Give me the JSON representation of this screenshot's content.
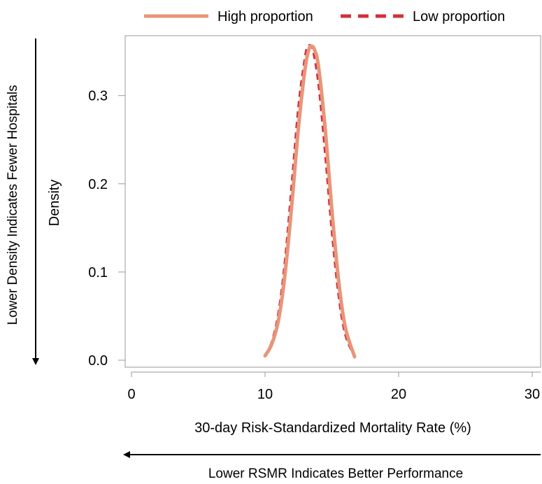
{
  "chart_data": {
    "type": "line",
    "title": "",
    "xlabel": "30-day Risk-Standardized Mortality Rate (%)",
    "ylabel": "Density",
    "xlim": [
      0,
      30
    ],
    "ylim": [
      0,
      0.36
    ],
    "x_ticks": [
      0,
      10,
      20,
      30
    ],
    "x_tick_labels": [
      "0",
      "10",
      "20",
      "30"
    ],
    "y_ticks": [
      0.0,
      0.1,
      0.2,
      0.3
    ],
    "y_tick_labels": [
      "0.0",
      "0.1",
      "0.2",
      "0.3"
    ],
    "grid": false,
    "legend_position": "top",
    "series": [
      {
        "name": "High proportion",
        "color": "#E8957A",
        "dash": "solid",
        "x": [
          10.0,
          10.5,
          11.0,
          11.5,
          12.0,
          12.5,
          13.0,
          13.3,
          13.5,
          13.7,
          14.0,
          14.5,
          15.0,
          15.5,
          16.0,
          16.7
        ],
        "y": [
          0.005,
          0.018,
          0.045,
          0.098,
          0.176,
          0.264,
          0.331,
          0.353,
          0.356,
          0.352,
          0.333,
          0.263,
          0.171,
          0.091,
          0.038,
          0.004
        ]
      },
      {
        "name": "Low proportion",
        "color": "#D32F3A",
        "dash": "dashed",
        "x": [
          10.0,
          10.5,
          11.0,
          11.5,
          12.0,
          12.5,
          13.0,
          13.2,
          13.4,
          13.6,
          14.0,
          14.5,
          15.0,
          15.5,
          16.0,
          16.7
        ],
        "y": [
          0.005,
          0.021,
          0.054,
          0.115,
          0.201,
          0.289,
          0.345,
          0.355,
          0.357,
          0.35,
          0.312,
          0.233,
          0.145,
          0.073,
          0.029,
          0.004
        ]
      }
    ]
  },
  "annotations": {
    "left_arrow_label": "Lower Density Indicates Fewer Hospitals",
    "bottom_arrow_label": "Lower RSMR Indicates Better Performance"
  }
}
